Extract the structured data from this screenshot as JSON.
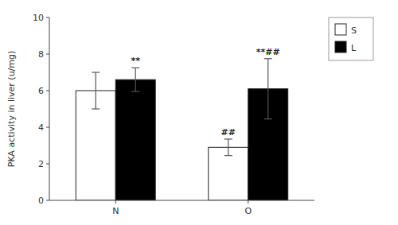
{
  "chart_data": {
    "type": "bar",
    "categories": [
      "N",
      "O"
    ],
    "series": [
      {
        "name": "S",
        "color": "white",
        "values": [
          6.0,
          2.9
        ],
        "errors": [
          1.0,
          0.45
        ],
        "annotations": [
          null,
          "##"
        ]
      },
      {
        "name": "L",
        "color": "black",
        "values": [
          6.6,
          6.1
        ],
        "errors": [
          0.65,
          1.65
        ],
        "annotations": [
          "**",
          "**##"
        ]
      }
    ],
    "ylabel": "PKA activity in liver (u/mg)",
    "ylim": [
      0,
      10
    ],
    "yticks": [
      0,
      2,
      4,
      6,
      8,
      10
    ],
    "legend": "right",
    "grid": false
  }
}
